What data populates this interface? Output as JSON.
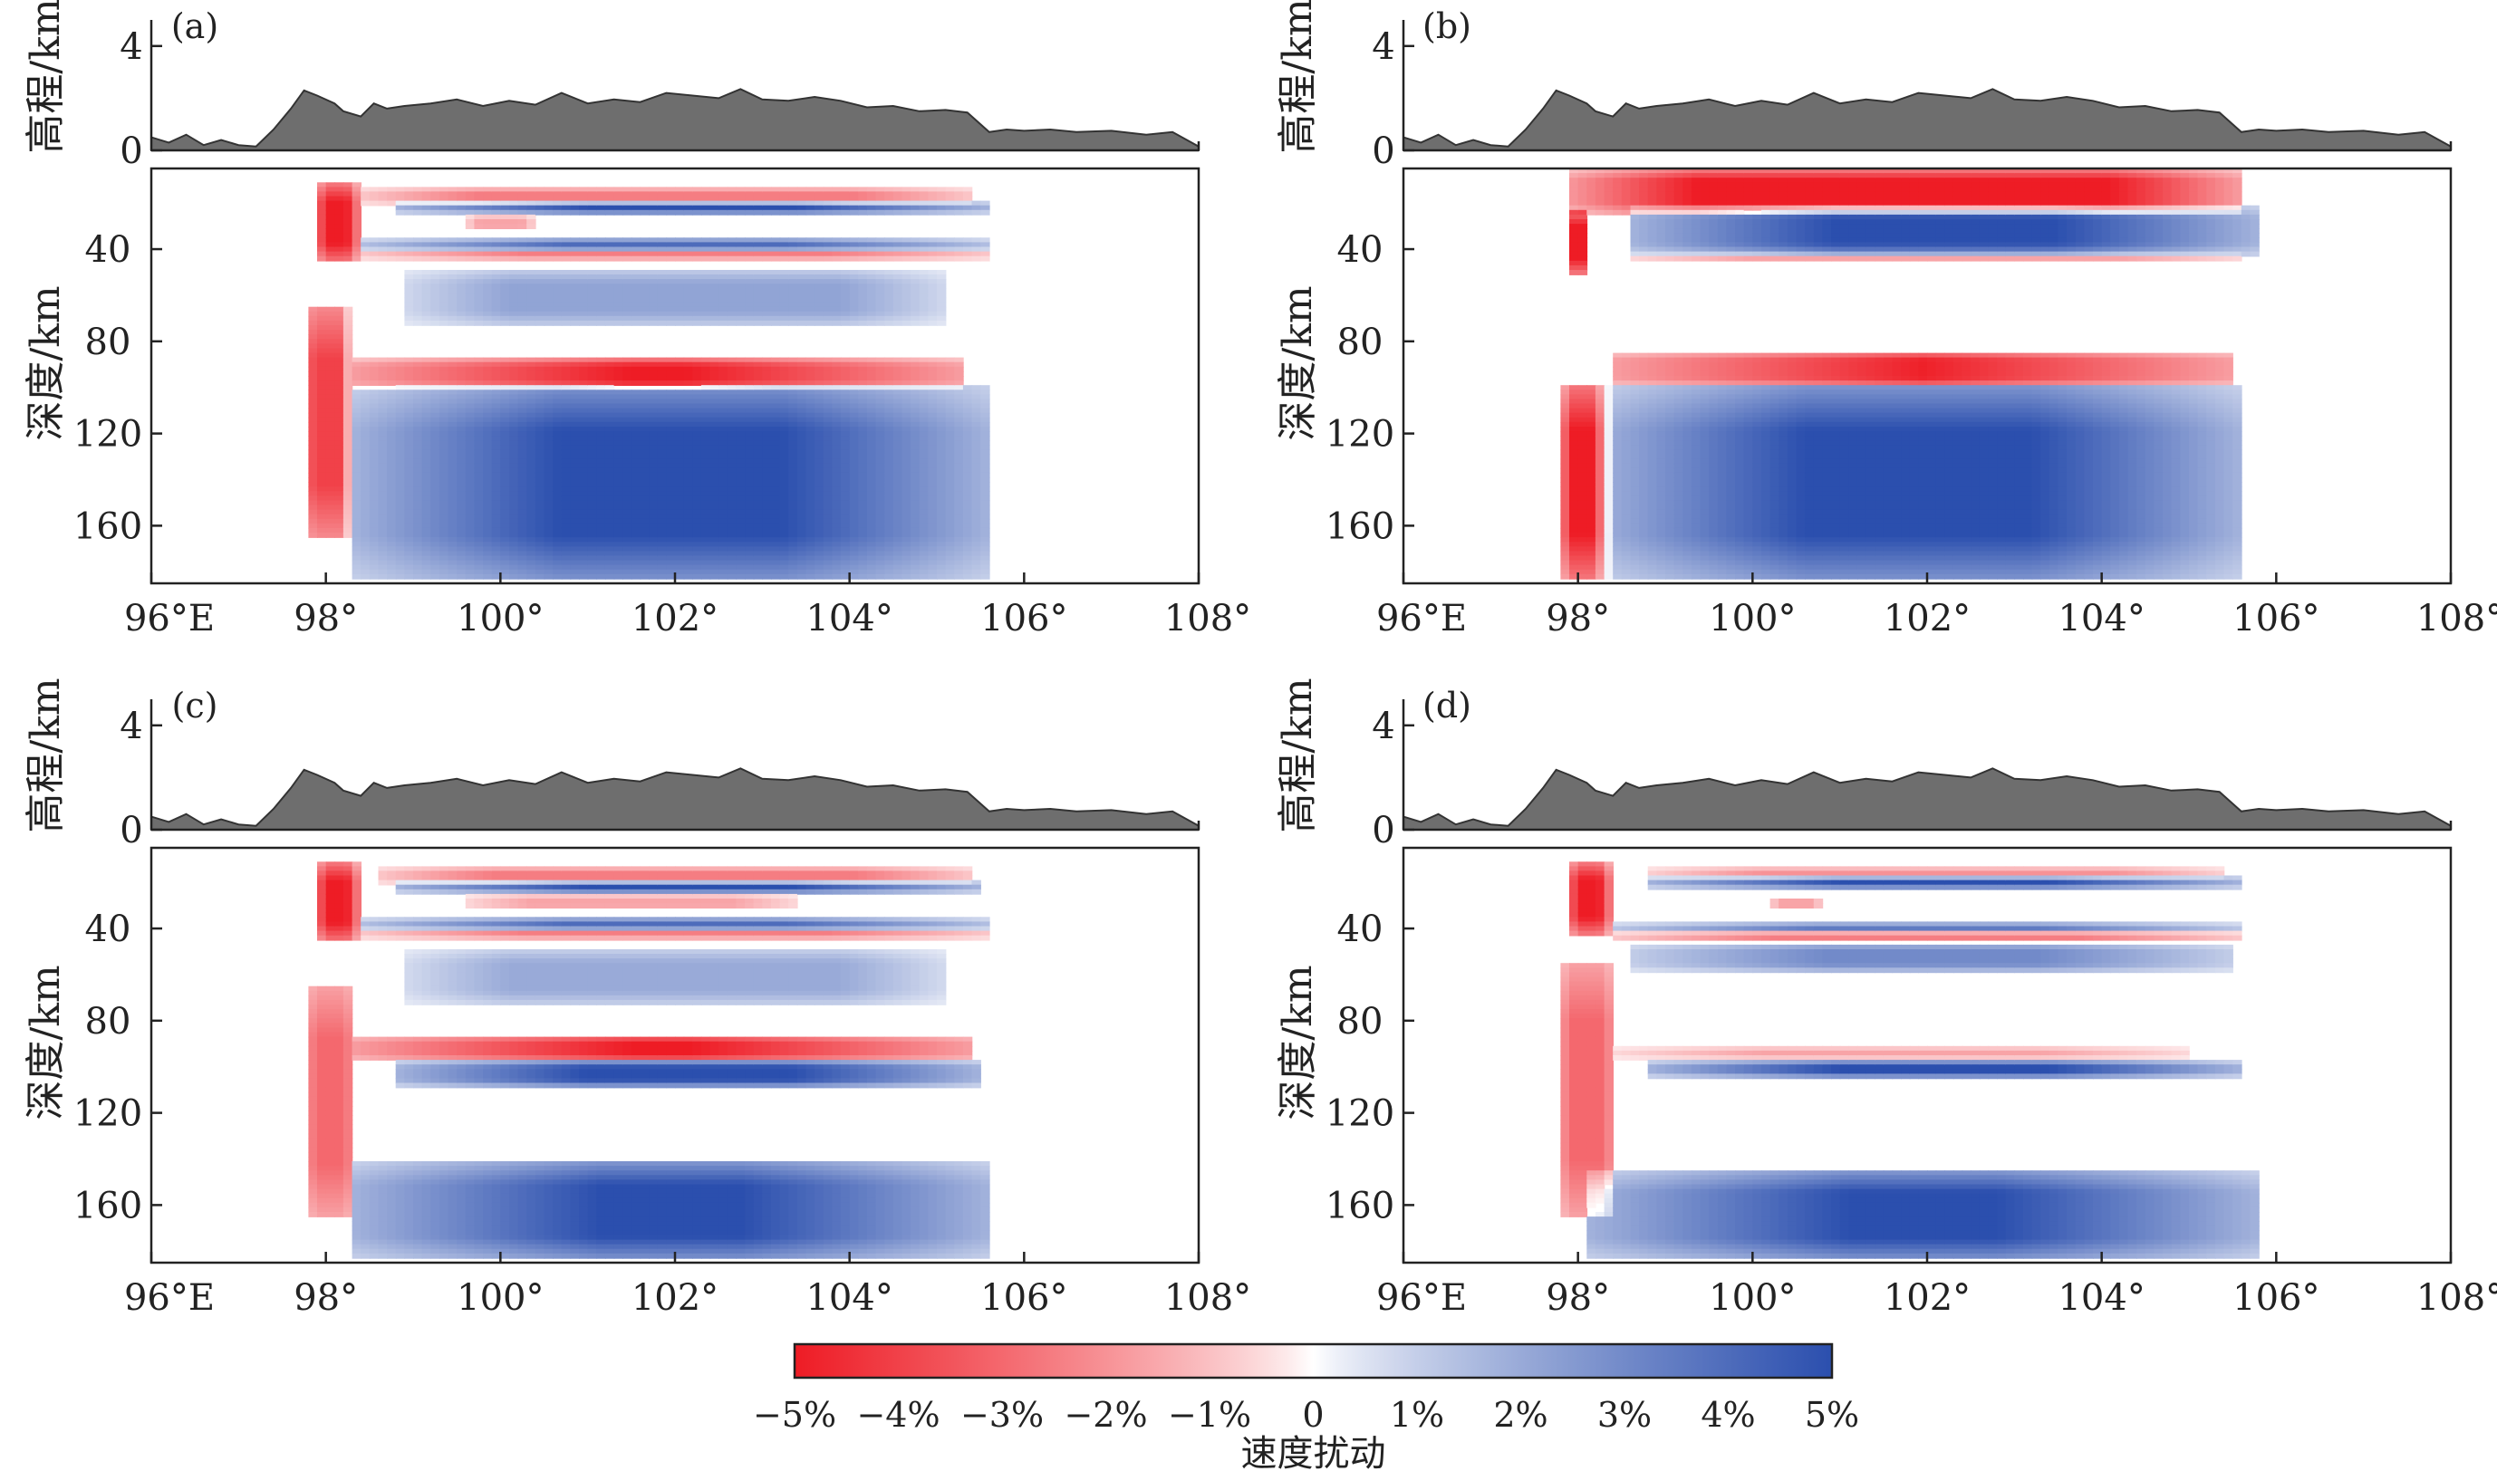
{
  "chart_data": {
    "type": "heatmap",
    "figure_layout": "2x2 panels, each with a topography profile above a depth cross-section",
    "x_axis": {
      "range": [
        96,
        108
      ],
      "ticks": [
        96,
        98,
        100,
        102,
        104,
        106,
        108
      ],
      "tick_labels": [
        "96°E",
        "98°",
        "100°",
        "102°",
        "104°",
        "106°",
        "108°"
      ]
    },
    "elevation_axis": {
      "label": "高程/km",
      "range": [
        0,
        5
      ],
      "ticks": [
        "0",
        "4"
      ]
    },
    "depth_axis": {
      "label": "深度/km",
      "range": [
        5,
        185
      ],
      "ticks": [
        "40",
        "80",
        "120",
        "160"
      ]
    },
    "topography_profile_km": [
      [
        96.0,
        0.5
      ],
      [
        96.2,
        0.3
      ],
      [
        96.4,
        0.6
      ],
      [
        96.6,
        0.2
      ],
      [
        96.8,
        0.4
      ],
      [
        97.0,
        0.2
      ],
      [
        97.2,
        0.15
      ],
      [
        97.4,
        0.8
      ],
      [
        97.6,
        1.6
      ],
      [
        97.75,
        2.3
      ],
      [
        97.9,
        2.1
      ],
      [
        98.1,
        1.8
      ],
      [
        98.2,
        1.5
      ],
      [
        98.4,
        1.3
      ],
      [
        98.55,
        1.8
      ],
      [
        98.7,
        1.6
      ],
      [
        98.9,
        1.7
      ],
      [
        99.2,
        1.8
      ],
      [
        99.5,
        1.95
      ],
      [
        99.8,
        1.7
      ],
      [
        100.1,
        1.9
      ],
      [
        100.4,
        1.75
      ],
      [
        100.7,
        2.2
      ],
      [
        101.0,
        1.8
      ],
      [
        101.3,
        1.95
      ],
      [
        101.6,
        1.85
      ],
      [
        101.9,
        2.2
      ],
      [
        102.2,
        2.1
      ],
      [
        102.5,
        2.0
      ],
      [
        102.75,
        2.35
      ],
      [
        103.0,
        1.95
      ],
      [
        103.3,
        1.9
      ],
      [
        103.6,
        2.05
      ],
      [
        103.9,
        1.9
      ],
      [
        104.2,
        1.65
      ],
      [
        104.5,
        1.7
      ],
      [
        104.8,
        1.5
      ],
      [
        105.1,
        1.55
      ],
      [
        105.35,
        1.45
      ],
      [
        105.6,
        0.7
      ],
      [
        105.8,
        0.8
      ],
      [
        106.0,
        0.75
      ],
      [
        106.3,
        0.8
      ],
      [
        106.6,
        0.7
      ],
      [
        107.0,
        0.75
      ],
      [
        107.4,
        0.6
      ],
      [
        107.7,
        0.7
      ],
      [
        108.0,
        0.15
      ]
    ],
    "panels": [
      {
        "label": "(a)",
        "anomalies": [
          {
            "sign": -1,
            "amp": 5,
            "x": [
              97.85,
              98.4
            ],
            "depth": [
              12,
              45
            ],
            "fade": 0.45
          },
          {
            "sign": -1,
            "amp": 2.5,
            "x": [
              98.4,
              105.4
            ],
            "depth": [
              14,
              20
            ],
            "fade": 0.3
          },
          {
            "sign": 1,
            "amp": 5,
            "x": [
              98.8,
              105.6
            ],
            "depth": [
              20,
              24
            ],
            "fade": 0.5
          },
          {
            "sign": -1,
            "amp": 1.6,
            "x": [
              99.6,
              100.4
            ],
            "depth": [
              26,
              31
            ],
            "fade": 0.3
          },
          {
            "sign": 1,
            "amp": 4,
            "x": [
              98.4,
              105.6
            ],
            "depth": [
              36,
              40
            ],
            "fade": 0.5
          },
          {
            "sign": -1,
            "amp": 2.5,
            "x": [
              98.4,
              105.6
            ],
            "depth": [
              41,
              44
            ],
            "fade": 0.4
          },
          {
            "sign": 1,
            "amp": 2.2,
            "x": [
              98.9,
              105.1
            ],
            "depth": [
              50,
              72
            ],
            "fade": 0.3
          },
          {
            "sign": -1,
            "amp": 4,
            "x": [
              97.8,
              98.25
            ],
            "depth": [
              65,
              165
            ],
            "fade": 0.2
          },
          {
            "sign": -1,
            "amp": 5,
            "x": [
              98.3,
              105.3
            ],
            "depth": [
              88,
              100
            ],
            "fade": 0.7
          },
          {
            "sign": 1,
            "amp": 5,
            "x": [
              98.3,
              105.6
            ],
            "depth": [
              100,
              183
            ],
            "fade": 0.5
          }
        ]
      },
      {
        "label": "(b)",
        "anomalies": [
          {
            "sign": -1,
            "amp": 5,
            "x": [
              97.85,
              105.6
            ],
            "depth": [
              6,
              24
            ],
            "fade": 0.3
          },
          {
            "sign": -1,
            "amp": 5,
            "x": [
              97.85,
              98.1
            ],
            "depth": [
              24,
              50
            ],
            "fade": 0.2
          },
          {
            "sign": 1,
            "amp": 5,
            "x": [
              98.6,
              105.8
            ],
            "depth": [
              22,
              42
            ],
            "fade": 0.5
          },
          {
            "sign": -1,
            "amp": 1.6,
            "x": [
              98.6,
              105.6
            ],
            "depth": [
              42,
              45
            ],
            "fade": 0.3
          },
          {
            "sign": -1,
            "amp": 5,
            "x": [
              98.4,
              105.5
            ],
            "depth": [
              85,
              99
            ],
            "fade": 0.8
          },
          {
            "sign": 1,
            "amp": 5,
            "x": [
              98.2,
              105.6
            ],
            "depth": [
              100,
              183
            ],
            "fade": 0.5
          },
          {
            "sign": -1,
            "amp": 5,
            "x": [
              97.8,
              98.35
            ],
            "depth": [
              100,
              182
            ],
            "fade": 0.3
          }
        ]
      },
      {
        "label": "(c)",
        "anomalies": [
          {
            "sign": -1,
            "amp": 5,
            "x": [
              97.85,
              98.4
            ],
            "depth": [
              12,
              45
            ],
            "fade": 0.45
          },
          {
            "sign": -1,
            "amp": 2.5,
            "x": [
              98.6,
              105.4
            ],
            "depth": [
              14,
              20
            ],
            "fade": 0.3
          },
          {
            "sign": 1,
            "amp": 5,
            "x": [
              98.8,
              105.5
            ],
            "depth": [
              20,
              24
            ],
            "fade": 0.5
          },
          {
            "sign": -1,
            "amp": 1.6,
            "x": [
              99.6,
              103.4
            ],
            "depth": [
              26,
              31
            ],
            "fade": 0.3
          },
          {
            "sign": 1,
            "amp": 4,
            "x": [
              98.4,
              105.6
            ],
            "depth": [
              36,
              40
            ],
            "fade": 0.5
          },
          {
            "sign": -1,
            "amp": 2.5,
            "x": [
              98.4,
              105.6
            ],
            "depth": [
              41,
              44
            ],
            "fade": 0.4
          },
          {
            "sign": 1,
            "amp": 2.0,
            "x": [
              98.9,
              105.1
            ],
            "depth": [
              50,
              72
            ],
            "fade": 0.3
          },
          {
            "sign": -1,
            "amp": 3,
            "x": [
              97.8,
              98.3
            ],
            "depth": [
              65,
              165
            ],
            "fade": 0.2
          },
          {
            "sign": -1,
            "amp": 5,
            "x": [
              98.3,
              105.4
            ],
            "depth": [
              87,
              97
            ],
            "fade": 0.7
          },
          {
            "sign": 1,
            "amp": 5,
            "x": [
              98.8,
              105.5
            ],
            "depth": [
              98,
              108
            ],
            "fade": 0.5
          },
          {
            "sign": 1,
            "amp": 5,
            "x": [
              98.3,
              105.6
            ],
            "depth": [
              142,
              183
            ],
            "fade": 0.6
          }
        ]
      },
      {
        "label": "(d)",
        "anomalies": [
          {
            "sign": -1,
            "amp": 5,
            "x": [
              97.85,
              98.4
            ],
            "depth": [
              12,
              42
            ],
            "fade": 0.45
          },
          {
            "sign": -1,
            "amp": 2.0,
            "x": [
              98.8,
              105.4
            ],
            "depth": [
              14,
              18
            ],
            "fade": 0.3
          },
          {
            "sign": 1,
            "amp": 5,
            "x": [
              98.8,
              105.6
            ],
            "depth": [
              18,
              22
            ],
            "fade": 0.5
          },
          {
            "sign": -1,
            "amp": 1.6,
            "x": [
              100.2,
              100.8
            ],
            "depth": [
              27,
              31
            ],
            "fade": 0.3
          },
          {
            "sign": 1,
            "amp": 3.5,
            "x": [
              98.4,
              105.6
            ],
            "depth": [
              38,
              41
            ],
            "fade": 0.5
          },
          {
            "sign": -1,
            "amp": 2.5,
            "x": [
              98.4,
              105.6
            ],
            "depth": [
              42,
              45
            ],
            "fade": 0.4
          },
          {
            "sign": 1,
            "amp": 3,
            "x": [
              98.6,
              105.5
            ],
            "depth": [
              47,
              58
            ],
            "fade": 0.5
          },
          {
            "sign": -1,
            "amp": 3,
            "x": [
              97.8,
              98.4
            ],
            "depth": [
              55,
              165
            ],
            "fade": 0.2
          },
          {
            "sign": -1,
            "amp": 1.6,
            "x": [
              98.4,
              105.0
            ],
            "depth": [
              92,
              96
            ],
            "fade": 0.4
          },
          {
            "sign": 1,
            "amp": 5,
            "x": [
              98.8,
              105.6
            ],
            "depth": [
              98,
              104
            ],
            "fade": 0.5
          },
          {
            "sign": 1,
            "amp": 5,
            "x": [
              98.1,
              105.8
            ],
            "depth": [
              146,
              183
            ],
            "fade": 0.6
          }
        ]
      }
    ],
    "colorbar": {
      "label": "速度扰动",
      "range": [
        -5,
        5
      ],
      "tick_labels": [
        "−5%",
        "−4%",
        "−3%",
        "−2%",
        "−1%",
        "0",
        "1%",
        "2%",
        "3%",
        "4%",
        "5%"
      ],
      "colors": {
        "negative": "#ee1c25",
        "zero": "#ffffff",
        "positive": "#2b4fae"
      }
    },
    "terrain_color": "#6e6e6e"
  }
}
